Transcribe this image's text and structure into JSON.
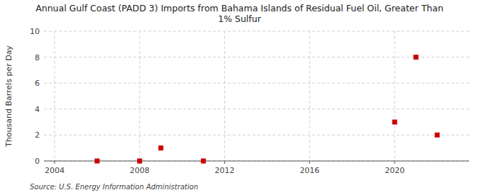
{
  "chart_data": {
    "type": "scatter",
    "title": "Annual Gulf Coast (PADD 3) Imports from Bahama Islands of Residual Fuel Oil, Greater Than\n1% Sulfur",
    "y_label": "Thousand Barrels per Day",
    "source": "Source: U.S. Energy Information Administration",
    "x": [
      2006,
      2008,
      2009,
      2011,
      2020,
      2021,
      2022
    ],
    "values": [
      0.0,
      0.0,
      1.0,
      0.0,
      3.0,
      8.0,
      2.0
    ],
    "color": "#cc0000",
    "marker": "square",
    "xlim": [
      2003.5,
      2023.5
    ],
    "ylim": [
      0,
      10
    ],
    "xticks": [
      2004,
      2008,
      2012,
      2016,
      2020
    ],
    "yticks": [
      0,
      2,
      4,
      6,
      8,
      10
    ],
    "grid": true
  }
}
